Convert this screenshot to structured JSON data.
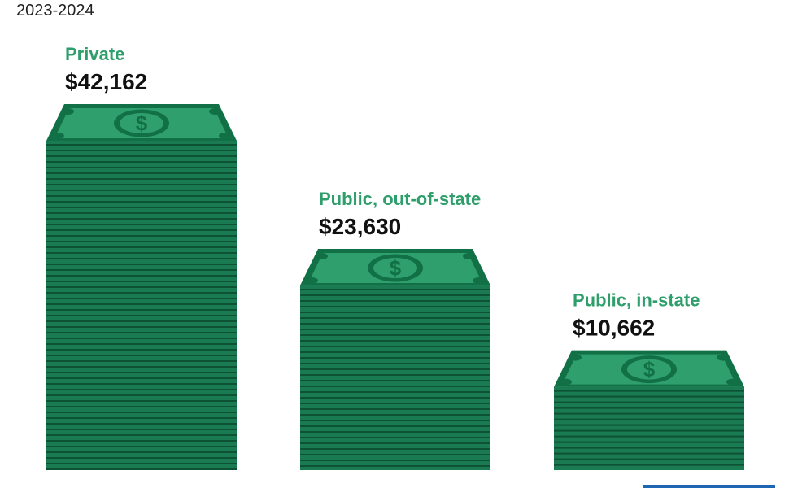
{
  "subtitle": "2023-2024",
  "colors": {
    "accent": "#2e9e6b",
    "stack": "#1a7a52",
    "stack_line": "#0d5235",
    "bill_top": "#2f9f6d",
    "bill_border": "#117046",
    "label_value": "#111111",
    "corner_tab": "#1e66b4"
  },
  "chart_data": {
    "type": "bar",
    "style": "stacked-money-pictogram",
    "title": "",
    "subtitle": "2023-2024",
    "xlabel": "",
    "ylabel": "",
    "categories": [
      "Private",
      "Public, out-of-state",
      "Public, in-state"
    ],
    "values": [
      42162,
      23630,
      10662
    ],
    "value_labels": [
      "$42,162",
      "$23,630",
      "$10,662"
    ],
    "ylim": [
      0,
      42162
    ],
    "grid": false,
    "legend": "none"
  }
}
